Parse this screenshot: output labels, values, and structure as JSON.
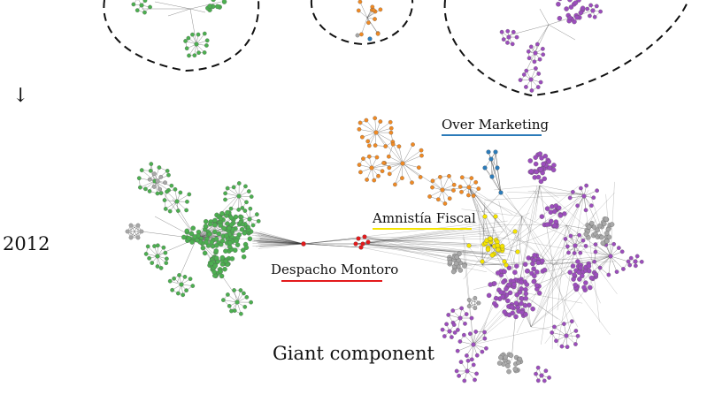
{
  "arrow_symbol": "↓",
  "year": "2012",
  "labels": {
    "over_marketing": "Over Marketing",
    "amnistia_fiscal": "Amnistía Fiscal",
    "despacho_montoro": "Despacho Montoro",
    "giant_component": "Giant component"
  },
  "colors": {
    "green": "#4caf50",
    "purple": "#9c4dbd",
    "orange": "#f08a24",
    "gray": "#a8a8a8",
    "yellow": "#f5e400",
    "red": "#e31a1c",
    "blue": "#2b7bb9",
    "edge": "#333333"
  }
}
